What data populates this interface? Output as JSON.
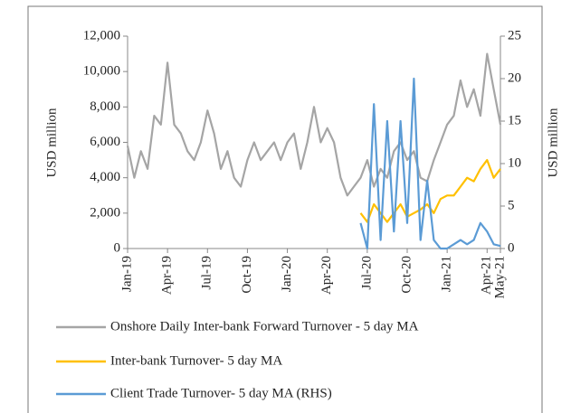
{
  "chart_data": {
    "type": "line",
    "y_label": "USD million",
    "y2_label": "USD million",
    "categories": [
      "Jan-19",
      null,
      null,
      null,
      null,
      null,
      "Apr-19",
      null,
      null,
      null,
      null,
      null,
      "Jul-19",
      null,
      null,
      null,
      null,
      null,
      "Oct-19",
      null,
      null,
      null,
      null,
      null,
      "Jan-20",
      null,
      null,
      null,
      null,
      null,
      "Apr-20",
      null,
      null,
      null,
      null,
      null,
      "Jul-20",
      null,
      null,
      null,
      null,
      null,
      "Oct-20",
      null,
      null,
      null,
      null,
      null,
      "Jan-21",
      null,
      null,
      null,
      null,
      null,
      "Apr-21",
      null,
      "May-21"
    ],
    "ylim": [
      0,
      12000
    ],
    "yticks": [
      {
        "value": 0,
        "label": "0"
      },
      {
        "value": 2000,
        "label": "2,000"
      },
      {
        "value": 4000,
        "label": "4,000"
      },
      {
        "value": 6000,
        "label": "6,000"
      },
      {
        "value": 8000,
        "label": "8,000"
      },
      {
        "value": 10000,
        "label": "10,000"
      },
      {
        "value": 12000,
        "label": "12,000"
      }
    ],
    "y2lim": [
      0,
      25
    ],
    "y2ticks": [
      0,
      5,
      10,
      15,
      20,
      25
    ],
    "series": [
      {
        "name": "Onshore Daily Inter-bank Forward Turnover - 5 day MA",
        "color": "#a5a5a5",
        "values": [
          5800,
          4000,
          5500,
          4500,
          7500,
          7000,
          10500,
          7000,
          6500,
          5500,
          5000,
          6000,
          7800,
          6500,
          4500,
          5500,
          4000,
          3500,
          5000,
          6000,
          5000,
          5500,
          6000,
          5000,
          6000,
          6500,
          4500,
          6000,
          8000,
          6000,
          6800,
          6000,
          4000,
          3000,
          3500,
          4000,
          5000,
          3500,
          4500,
          4000,
          5500,
          6000,
          5000,
          5500,
          4000,
          3800,
          5000,
          6000,
          7000,
          7500,
          9500,
          8000,
          9000,
          7500,
          11000,
          9000,
          7000
        ]
      },
      {
        "name": "Inter-bank Turnover- 5 day MA",
        "color": "#ffc000",
        "values": [
          null,
          null,
          null,
          null,
          null,
          null,
          null,
          null,
          null,
          null,
          null,
          null,
          null,
          null,
          null,
          null,
          null,
          null,
          null,
          null,
          null,
          null,
          null,
          null,
          null,
          null,
          null,
          null,
          null,
          null,
          null,
          null,
          null,
          null,
          null,
          2000,
          1500,
          2500,
          2000,
          1500,
          2000,
          2500,
          1800,
          2000,
          2200,
          2500,
          2000,
          2800,
          3000,
          3000,
          3500,
          4000,
          3800,
          4500,
          5000,
          4000,
          4500
        ]
      },
      {
        "name": "Client Trade Turnover- 5 day MA (RHS)",
        "color": "#5b9bd5",
        "axis": "y2",
        "values": [
          null,
          null,
          null,
          null,
          null,
          null,
          null,
          null,
          null,
          null,
          null,
          null,
          null,
          null,
          null,
          null,
          null,
          null,
          null,
          null,
          null,
          null,
          null,
          null,
          null,
          null,
          null,
          null,
          null,
          null,
          null,
          null,
          null,
          null,
          null,
          3,
          0,
          17,
          1,
          15,
          2,
          15,
          3,
          20,
          1,
          8,
          1,
          0,
          0,
          0.5,
          1,
          0.5,
          1,
          3,
          2,
          0.5,
          0.3
        ]
      }
    ]
  }
}
